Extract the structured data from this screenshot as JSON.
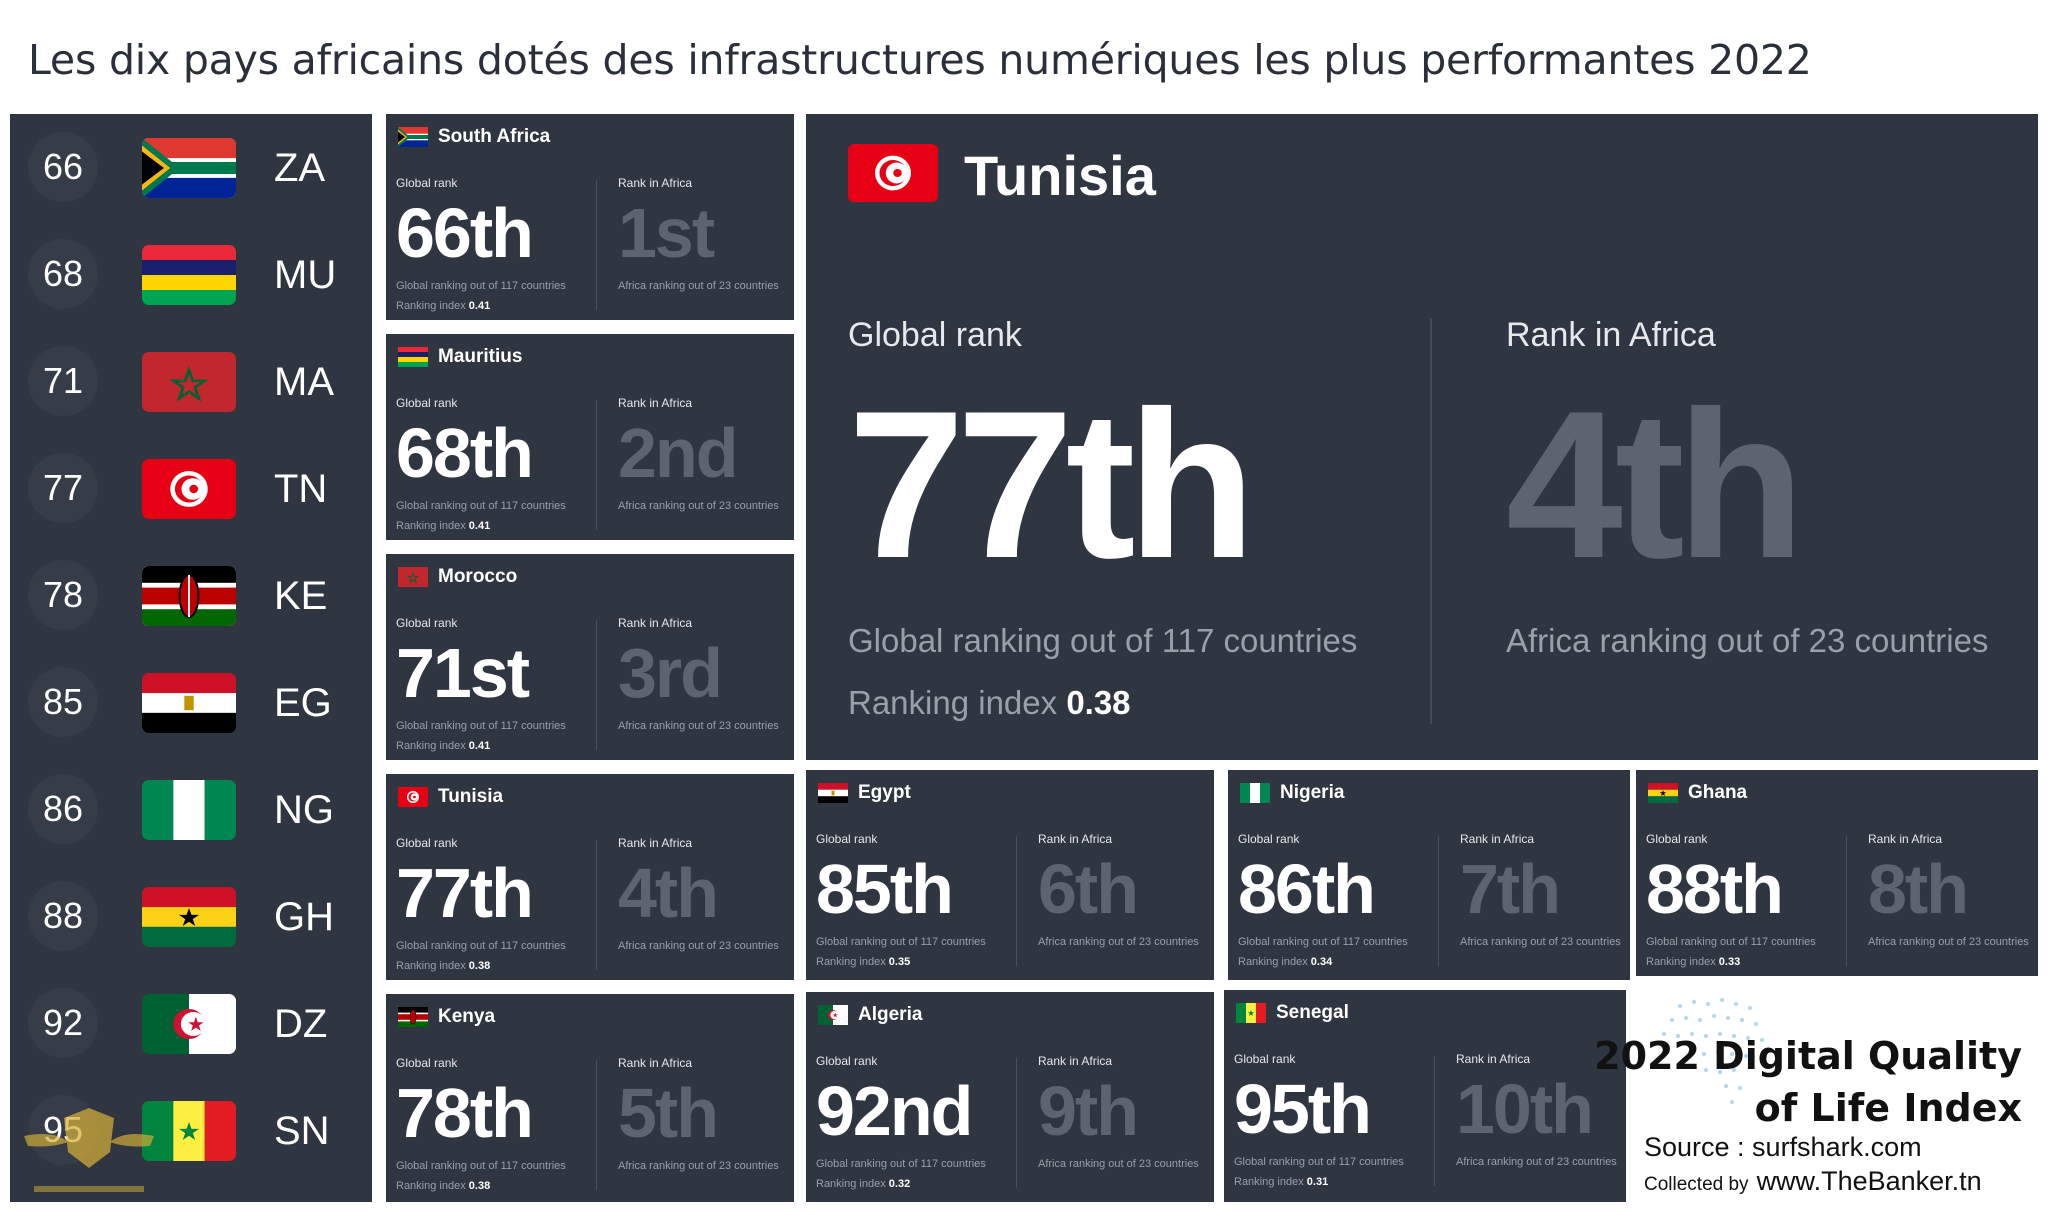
{
  "title": "Les dix pays africains dotés des infrastructures  numériques les plus performantes 2022",
  "rank_list": [
    {
      "rank": "66",
      "code": "ZA",
      "flag": "flag-south-africa-icon"
    },
    {
      "rank": "68",
      "code": "MU",
      "flag": "flag-mauritius-icon"
    },
    {
      "rank": "71",
      "code": "MA",
      "flag": "flag-morocco-icon"
    },
    {
      "rank": "77",
      "code": "TN",
      "flag": "flag-tunisia-icon"
    },
    {
      "rank": "78",
      "code": "KE",
      "flag": "flag-kenya-icon"
    },
    {
      "rank": "85",
      "code": "EG",
      "flag": "flag-egypt-icon"
    },
    {
      "rank": "86",
      "code": "NG",
      "flag": "flag-nigeria-icon"
    },
    {
      "rank": "88",
      "code": "GH",
      "flag": "flag-ghana-icon"
    },
    {
      "rank": "92",
      "code": "DZ",
      "flag": "flag-algeria-icon"
    },
    {
      "rank": "95",
      "code": "SN",
      "flag": "flag-senegal-icon"
    }
  ],
  "labels": {
    "global_rank": "Global rank",
    "rank_in_africa": "Rank in Africa",
    "global_sub": "Global ranking out of 117 countries",
    "africa_sub": "Africa ranking out of 23 countries",
    "ranking_index": "Ranking index"
  },
  "cards": [
    {
      "country": "South Africa",
      "global": "66th",
      "africa": "1st",
      "index": "0.41"
    },
    {
      "country": "Mauritius",
      "global": "68th",
      "africa": "2nd",
      "index": "0.41"
    },
    {
      "country": "Morocco",
      "global": "71st",
      "africa": "3rd",
      "index": "0.41"
    },
    {
      "country": "Tunisia",
      "global": "77th",
      "africa": "4th",
      "index": "0.38"
    },
    {
      "country": "Kenya",
      "global": "78th",
      "africa": "5th",
      "index": "0.38"
    },
    {
      "country": "Egypt",
      "global": "85th",
      "africa": "6th",
      "index": "0.35"
    },
    {
      "country": "Nigeria",
      "global": "86th",
      "africa": "7th",
      "index": "0.34"
    },
    {
      "country": "Ghana",
      "global": "88th",
      "africa": "8th",
      "index": "0.33"
    },
    {
      "country": "Algeria",
      "global": "92nd",
      "africa": "9th",
      "index": "0.32"
    },
    {
      "country": "Senegal",
      "global": "95th",
      "africa": "10th",
      "index": "0.31"
    }
  ],
  "feature": {
    "country": "Tunisia",
    "global": "77th",
    "africa": "4th",
    "index": "0.38"
  },
  "logo": {
    "line1": "2022 Digital Quality",
    "line2": "of Life Index",
    "source": "Source :  surfshark.com",
    "collected_label": "Collected by",
    "collected_site": "www.TheBanker.tn"
  },
  "colors": {
    "panel": "#2f3541",
    "dim_rank": "#5d6470",
    "sub_text": "#9aa0aa"
  }
}
